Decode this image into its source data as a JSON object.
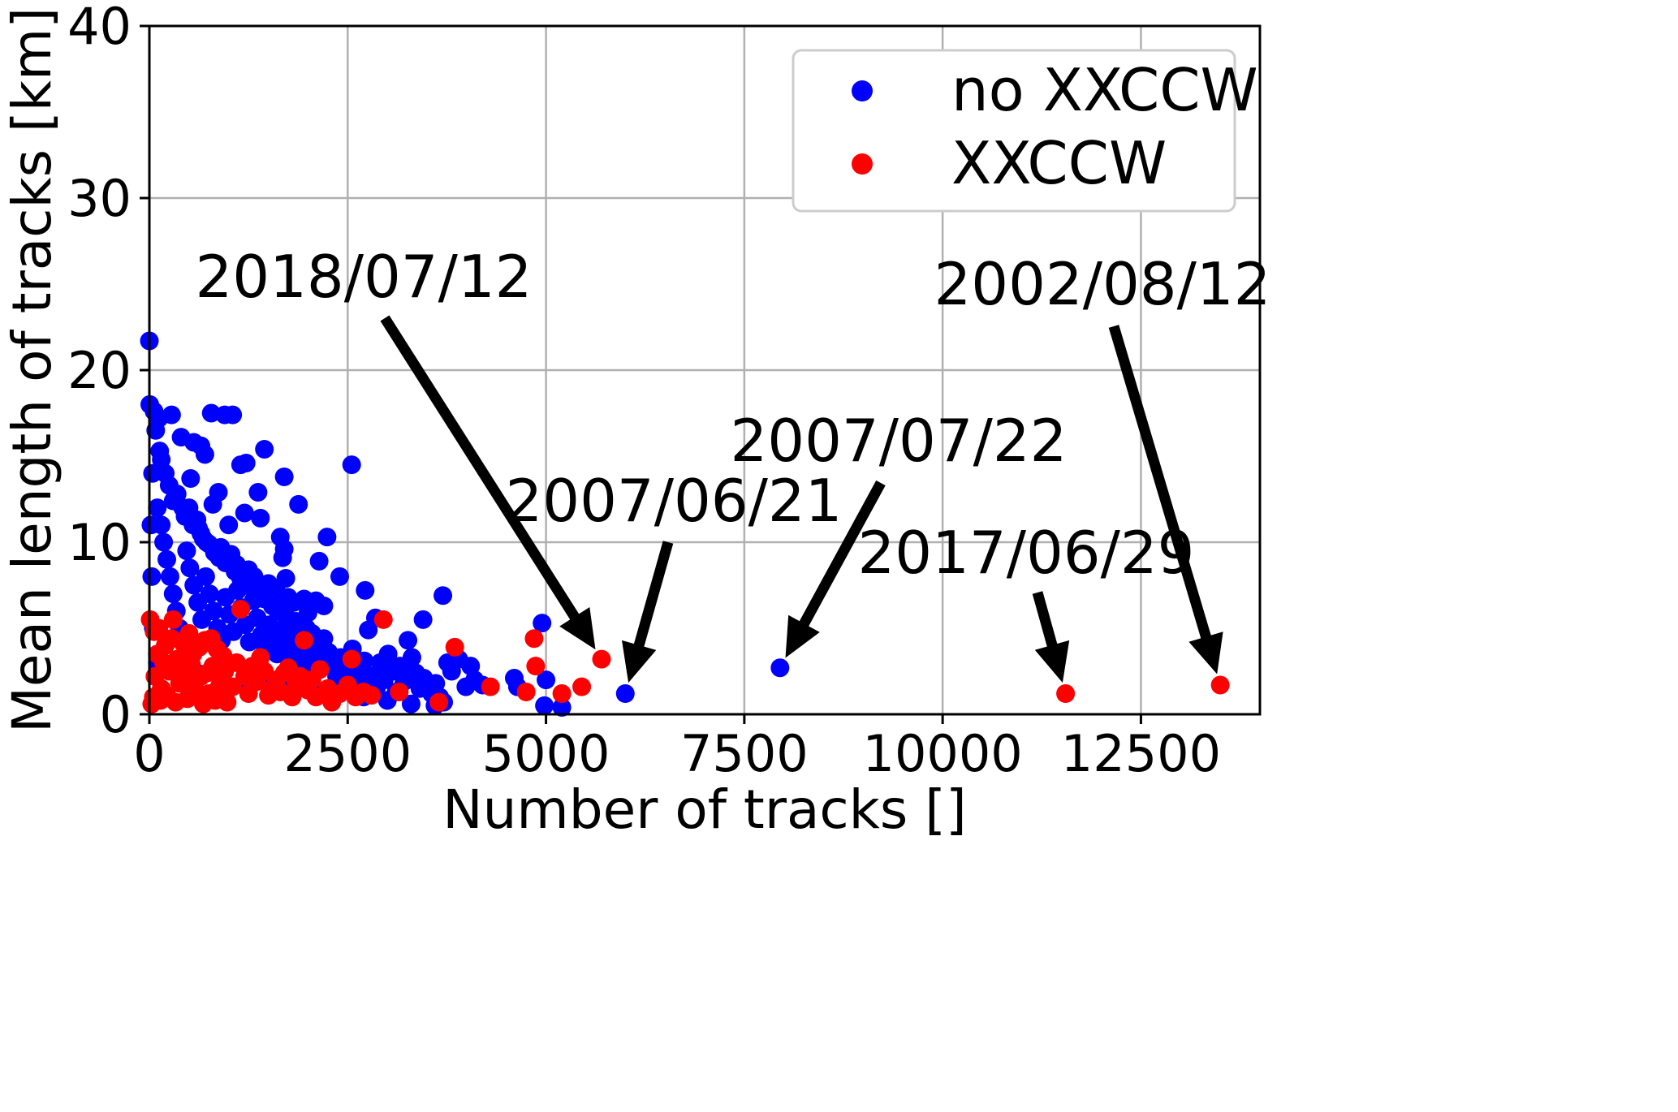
{
  "chart_data": {
    "type": "scatter",
    "xlabel": "Number of tracks []",
    "ylabel": "Mean length of tracks [km]",
    "xlim": [
      0,
      14000
    ],
    "ylim": [
      0,
      40
    ],
    "xticks": [
      0,
      2500,
      5000,
      7500,
      10000,
      12500
    ],
    "yticks": [
      0,
      10,
      20,
      30,
      40
    ],
    "grid": true,
    "legend_position": "top-right",
    "series": [
      {
        "name": "no XXCCW",
        "color": "#0000ff",
        "points": [
          [
            0,
            21.7
          ],
          [
            5,
            18.0
          ],
          [
            60,
            17.6
          ],
          [
            120,
            17.2
          ],
          [
            280,
            17.4
          ],
          [
            780,
            17.5
          ],
          [
            950,
            17.4
          ],
          [
            1050,
            17.4
          ],
          [
            400,
            16.1
          ],
          [
            560,
            15.8
          ],
          [
            650,
            15.6
          ],
          [
            700,
            15.1
          ],
          [
            1450,
            15.4
          ],
          [
            130,
            15.3
          ],
          [
            1150,
            14.5
          ],
          [
            1220,
            14.6
          ],
          [
            2550,
            14.5
          ],
          [
            520,
            13.7
          ],
          [
            1700,
            13.8
          ],
          [
            870,
            12.9
          ],
          [
            1370,
            12.9
          ],
          [
            300,
            12.4
          ],
          [
            800,
            12.2
          ],
          [
            1880,
            12.2
          ],
          [
            1200,
            11.7
          ],
          [
            1400,
            11.4
          ],
          [
            1000,
            11.0
          ],
          [
            1650,
            10.3
          ],
          [
            2240,
            10.3
          ],
          [
            1700,
            9.6
          ],
          [
            1680,
            9.1
          ],
          [
            2140,
            8.9
          ],
          [
            2400,
            8.0
          ],
          [
            1720,
            7.9
          ],
          [
            2720,
            7.2
          ],
          [
            3700,
            6.9
          ],
          [
            2200,
            6.3
          ],
          [
            3450,
            5.5
          ],
          [
            2850,
            5.6
          ],
          [
            4950,
            5.3
          ],
          [
            500,
            12.0
          ],
          [
            600,
            11.3
          ],
          [
            650,
            10.5
          ],
          [
            720,
            10.0
          ],
          [
            900,
            9.7
          ],
          [
            1030,
            9.3
          ],
          [
            1100,
            8.7
          ],
          [
            1250,
            8.4
          ],
          [
            1320,
            8.0
          ],
          [
            1500,
            7.6
          ],
          [
            1600,
            7.2
          ],
          [
            1750,
            6.8
          ],
          [
            1820,
            6.5
          ],
          [
            1950,
            6.7
          ],
          [
            2100,
            6.6
          ],
          [
            2000,
            5.9
          ],
          [
            200,
            14.0
          ],
          [
            250,
            13.3
          ],
          [
            350,
            12.8
          ],
          [
            420,
            12.0
          ],
          [
            450,
            11.5
          ],
          [
            550,
            11.0
          ],
          [
            620,
            10.8
          ],
          [
            680,
            10.2
          ],
          [
            750,
            9.9
          ],
          [
            820,
            9.4
          ],
          [
            880,
            9.1
          ],
          [
            960,
            8.8
          ],
          [
            1080,
            8.3
          ],
          [
            1150,
            7.9
          ],
          [
            1280,
            7.4
          ],
          [
            1380,
            7.0
          ],
          [
            1450,
            6.7
          ],
          [
            1550,
            6.3
          ],
          [
            1620,
            6.0
          ],
          [
            1720,
            5.7
          ],
          [
            1850,
            5.4
          ],
          [
            1980,
            5.0
          ],
          [
            2050,
            4.7
          ],
          [
            2200,
            4.4
          ],
          [
            100,
            12.0
          ],
          [
            150,
            11.0
          ],
          [
            180,
            10.0
          ],
          [
            220,
            9.0
          ],
          [
            260,
            8.0
          ],
          [
            300,
            7.0
          ],
          [
            340,
            6.0
          ],
          [
            380,
            5.0
          ],
          [
            420,
            4.5
          ],
          [
            470,
            9.5
          ],
          [
            510,
            8.5
          ],
          [
            560,
            7.5
          ],
          [
            610,
            6.5
          ],
          [
            660,
            5.5
          ],
          [
            710,
            8.0
          ],
          [
            760,
            7.0
          ],
          [
            810,
            6.0
          ],
          [
            860,
            5.0
          ],
          [
            910,
            4.3
          ],
          [
            960,
            6.8
          ],
          [
            1010,
            5.8
          ],
          [
            1060,
            4.8
          ],
          [
            1110,
            7.2
          ],
          [
            1160,
            6.2
          ],
          [
            1210,
            5.2
          ],
          [
            1260,
            4.2
          ],
          [
            1310,
            6.6
          ],
          [
            1360,
            5.6
          ],
          [
            1410,
            4.6
          ],
          [
            1460,
            3.9
          ],
          [
            1510,
            5.2
          ],
          [
            1560,
            4.3
          ],
          [
            1610,
            3.5
          ],
          [
            1660,
            4.9
          ],
          [
            1710,
            4.0
          ],
          [
            1760,
            3.3
          ],
          [
            1810,
            4.6
          ],
          [
            1860,
            3.7
          ],
          [
            1910,
            3.0
          ],
          [
            1960,
            4.2
          ],
          [
            2010,
            3.4
          ],
          [
            2060,
            2.8
          ],
          [
            2110,
            3.9
          ],
          [
            2160,
            3.1
          ],
          [
            2260,
            3.6
          ],
          [
            2310,
            2.9
          ],
          [
            2360,
            2.2
          ],
          [
            2410,
            3.3
          ],
          [
            2460,
            2.6
          ],
          [
            2510,
            1.9
          ],
          [
            2560,
            3.8
          ],
          [
            2610,
            2.4
          ],
          [
            2660,
            1.7
          ],
          [
            2710,
            3.1
          ],
          [
            2760,
            4.9
          ],
          [
            2810,
            2.2
          ],
          [
            2860,
            1.5
          ],
          [
            2910,
            3.0
          ],
          [
            2960,
            2.0
          ],
          [
            3010,
            3.5
          ],
          [
            3060,
            2.5
          ],
          [
            3110,
            1.3
          ],
          [
            3160,
            2.8
          ],
          [
            3210,
            1.9
          ],
          [
            3260,
            4.3
          ],
          [
            3310,
            3.3
          ],
          [
            3360,
            2.4
          ],
          [
            3410,
            1.5
          ],
          [
            3460,
            2.1
          ],
          [
            3560,
            1.2
          ],
          [
            3610,
            1.8
          ],
          [
            3660,
            1.0
          ],
          [
            3710,
            0.7
          ],
          [
            3760,
            3.0
          ],
          [
            3810,
            2.5
          ],
          [
            3900,
            3.2
          ],
          [
            3990,
            1.6
          ],
          [
            4050,
            2.8
          ],
          [
            4100,
            2.0
          ],
          [
            4200,
            1.7
          ],
          [
            4600,
            2.1
          ],
          [
            4640,
            1.6
          ],
          [
            5000,
            2.0
          ],
          [
            4980,
            0.5
          ],
          [
            5200,
            0.4
          ],
          [
            3600,
            0.5
          ],
          [
            3300,
            0.6
          ],
          [
            3000,
            0.8
          ],
          [
            2700,
            1.0
          ],
          [
            2400,
            1.2
          ],
          [
            2100,
            1.4
          ],
          [
            1800,
            1.6
          ],
          [
            1500,
            1.8
          ],
          [
            1200,
            2.0
          ],
          [
            900,
            2.2
          ],
          [
            600,
            2.4
          ],
          [
            300,
            2.6
          ],
          [
            100,
            3.0
          ],
          [
            50,
            5.0
          ],
          [
            30,
            8.0
          ],
          [
            20,
            11.0
          ],
          [
            40,
            14.0
          ],
          [
            80,
            16.5
          ],
          [
            150,
            14.8
          ],
          [
            6000,
            1.2
          ],
          [
            7950,
            2.7
          ]
        ]
      },
      {
        "name": "XXCCW",
        "color": "#ff0000",
        "points": [
          [
            10,
            5.5
          ],
          [
            60,
            4.8
          ],
          [
            120,
            5.0
          ],
          [
            300,
            5.5
          ],
          [
            500,
            4.7
          ],
          [
            700,
            4.3
          ],
          [
            1150,
            6.1
          ],
          [
            2950,
            5.5
          ],
          [
            1950,
            4.3
          ],
          [
            3850,
            3.9
          ],
          [
            4850,
            4.4
          ],
          [
            4870,
            2.8
          ],
          [
            5700,
            3.2
          ],
          [
            2550,
            3.2
          ],
          [
            2150,
            2.6
          ],
          [
            1700,
            2.4
          ],
          [
            1550,
            1.5
          ],
          [
            1000,
            2.9
          ],
          [
            900,
            1.9
          ],
          [
            800,
            2.8
          ],
          [
            650,
            2.2
          ],
          [
            400,
            2.6
          ],
          [
            250,
            2.5
          ],
          [
            150,
            1.5
          ],
          [
            50,
            1.0
          ],
          [
            100,
            3.5
          ],
          [
            200,
            4.0
          ],
          [
            350,
            3.2
          ],
          [
            450,
            2.0
          ],
          [
            550,
            3.5
          ],
          [
            750,
            1.2
          ],
          [
            850,
            3.8
          ],
          [
            950,
            2.5
          ],
          [
            1050,
            1.6
          ],
          [
            1100,
            3.0
          ],
          [
            1200,
            2.2
          ],
          [
            1250,
            1.2
          ],
          [
            1300,
            2.8
          ],
          [
            1350,
            1.9
          ],
          [
            1400,
            3.3
          ],
          [
            1450,
            2.5
          ],
          [
            1500,
            1.1
          ],
          [
            1600,
            2.0
          ],
          [
            1650,
            1.3
          ],
          [
            1750,
            2.7
          ],
          [
            1800,
            1.0
          ],
          [
            1850,
            1.8
          ],
          [
            1900,
            2.2
          ],
          [
            2000,
            1.4
          ],
          [
            2050,
            2.0
          ],
          [
            2100,
            1.0
          ],
          [
            2250,
            1.5
          ],
          [
            2300,
            0.7
          ],
          [
            2400,
            1.2
          ],
          [
            2500,
            1.7
          ],
          [
            2600,
            1.0
          ],
          [
            2700,
            1.3
          ],
          [
            2800,
            1.1
          ],
          [
            3150,
            1.3
          ],
          [
            3650,
            0.7
          ],
          [
            4300,
            1.6
          ],
          [
            4750,
            1.3
          ],
          [
            5200,
            1.2
          ],
          [
            5450,
            1.6
          ],
          [
            30,
            0.6
          ],
          [
            70,
            2.2
          ],
          [
            140,
            0.8
          ],
          [
            180,
            3.0
          ],
          [
            220,
            1.1
          ],
          [
            280,
            4.4
          ],
          [
            330,
            0.7
          ],
          [
            380,
            1.8
          ],
          [
            430,
            4.1
          ],
          [
            480,
            0.9
          ],
          [
            530,
            2.9
          ],
          [
            580,
            1.4
          ],
          [
            630,
            3.9
          ],
          [
            680,
            0.6
          ],
          [
            730,
            2.4
          ],
          [
            780,
            4.4
          ],
          [
            830,
            0.8
          ],
          [
            880,
            1.6
          ],
          [
            930,
            3.4
          ],
          [
            980,
            0.7
          ],
          [
            11550,
            1.2
          ],
          [
            13500,
            1.7
          ]
        ]
      }
    ],
    "annotations": [
      {
        "text": "2018/07/12",
        "target": [
          5700,
          3.2
        ]
      },
      {
        "text": "2007/06/21",
        "target": [
          6000,
          1.2
        ]
      },
      {
        "text": "2007/07/22",
        "target": [
          7950,
          2.7
        ]
      },
      {
        "text": "2017/06/29",
        "target": [
          11550,
          1.2
        ]
      },
      {
        "text": "2002/08/12",
        "target": [
          13500,
          1.7
        ]
      }
    ]
  }
}
